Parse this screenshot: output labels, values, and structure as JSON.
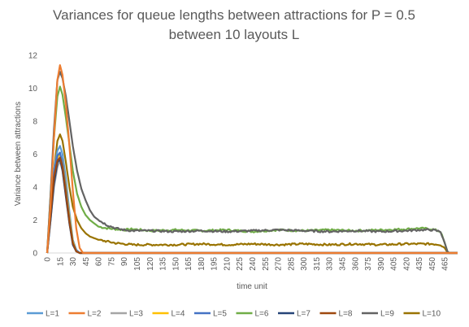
{
  "chart_data": {
    "type": "line",
    "title_line1": "Variances for queue lengths between attractions for P = 0.5",
    "title_line2": "between 10 layouts L",
    "xlabel": "time unit",
    "ylabel": "Variance between attractions",
    "xlim": [
      0,
      480
    ],
    "ylim": [
      0,
      12
    ],
    "y_ticks": [
      "0",
      "2",
      "4",
      "6",
      "8",
      "10",
      "12"
    ],
    "x_ticks": [
      "0",
      "15",
      "30",
      "45",
      "60",
      "75",
      "90",
      "105",
      "120",
      "135",
      "150",
      "165",
      "180",
      "195",
      "210",
      "225",
      "240",
      "255",
      "270",
      "285",
      "300",
      "315",
      "330",
      "345",
      "360",
      "375",
      "390",
      "405",
      "420",
      "435",
      "450",
      "465"
    ],
    "grid": false,
    "legend_position": "bottom",
    "series": [
      {
        "name": "L=1",
        "color": "#5B9BD5",
        "x": [
          0,
          4,
          8,
          12,
          15,
          18,
          22,
          26,
          30,
          34,
          38,
          45,
          60,
          480
        ],
        "y": [
          0,
          2.5,
          5.0,
          6.2,
          6.5,
          6.0,
          4.5,
          2.5,
          0.8,
          0.2,
          0,
          0,
          0,
          0
        ]
      },
      {
        "name": "L=2",
        "color": "#ED7D31",
        "x": [
          0,
          4,
          8,
          12,
          15,
          18,
          22,
          26,
          30,
          34,
          38,
          42,
          45,
          60,
          480
        ],
        "y": [
          0,
          3.0,
          7.0,
          10.5,
          11.4,
          10.8,
          9.0,
          6.5,
          3.8,
          1.5,
          0.3,
          0,
          0,
          0,
          0
        ]
      },
      {
        "name": "L=3",
        "color": "#A5A5A5",
        "x": [
          0,
          4,
          8,
          12,
          15,
          18,
          22,
          26,
          30,
          34,
          38,
          45,
          480
        ],
        "y": [
          0,
          2.0,
          4.0,
          5.2,
          5.6,
          5.0,
          3.5,
          1.8,
          0.6,
          0.1,
          0,
          0,
          0
        ]
      },
      {
        "name": "L=4",
        "color": "#FFC000",
        "x": [
          0,
          4,
          8,
          12,
          15,
          18,
          22,
          26,
          30,
          34,
          38,
          45,
          480
        ],
        "y": [
          0,
          2.2,
          4.5,
          5.8,
          6.0,
          5.5,
          4.0,
          2.2,
          0.7,
          0.1,
          0,
          0,
          0
        ]
      },
      {
        "name": "L=5",
        "color": "#4472C4",
        "x": [
          0,
          4,
          8,
          12,
          15,
          18,
          22,
          26,
          30,
          34,
          38,
          45,
          480
        ],
        "y": [
          0,
          2.4,
          4.8,
          5.9,
          6.1,
          5.4,
          3.8,
          2.0,
          0.6,
          0.1,
          0,
          0,
          0
        ]
      },
      {
        "name": "L=6",
        "color": "#70AD47",
        "x": [
          0,
          4,
          8,
          12,
          15,
          18,
          22,
          26,
          30,
          35,
          40,
          45,
          50,
          55,
          60,
          70,
          80,
          90,
          100,
          120,
          150,
          180,
          210,
          240,
          270,
          300,
          330,
          360,
          390,
          420,
          435,
          450,
          460,
          465,
          468,
          470,
          480
        ],
        "y": [
          0,
          3.5,
          7.0,
          9.5,
          10.1,
          9.6,
          8.2,
          6.6,
          5.0,
          3.6,
          2.8,
          2.3,
          2.0,
          1.8,
          1.6,
          1.5,
          1.45,
          1.4,
          1.45,
          1.35,
          1.4,
          1.35,
          1.4,
          1.3,
          1.4,
          1.35,
          1.4,
          1.35,
          1.4,
          1.45,
          1.5,
          1.45,
          1.3,
          0.6,
          0.1,
          0,
          0
        ]
      },
      {
        "name": "L=7",
        "color": "#264478",
        "x": [
          0,
          4,
          8,
          12,
          15,
          18,
          22,
          26,
          30,
          34,
          38,
          45,
          480
        ],
        "y": [
          0,
          2.0,
          4.2,
          5.5,
          5.7,
          5.0,
          3.4,
          1.8,
          0.5,
          0.1,
          0,
          0,
          0
        ]
      },
      {
        "name": "L=8",
        "color": "#9E480E",
        "x": [
          0,
          4,
          8,
          12,
          15,
          18,
          22,
          26,
          30,
          34,
          38,
          45,
          480
        ],
        "y": [
          0,
          2.3,
          4.6,
          5.6,
          5.8,
          5.2,
          3.6,
          1.9,
          0.6,
          0.1,
          0,
          0,
          0
        ]
      },
      {
        "name": "L=9",
        "color": "#636363",
        "x": [
          0,
          4,
          8,
          12,
          15,
          18,
          22,
          26,
          30,
          35,
          40,
          45,
          50,
          55,
          60,
          70,
          80,
          90,
          100,
          120,
          150,
          180,
          210,
          240,
          270,
          300,
          330,
          360,
          390,
          420,
          435,
          450,
          460,
          465,
          468,
          470,
          480
        ],
        "y": [
          0,
          3.5,
          7.5,
          10.5,
          11.0,
          10.6,
          9.5,
          8.0,
          6.5,
          5.0,
          3.9,
          3.2,
          2.6,
          2.2,
          2.0,
          1.7,
          1.5,
          1.4,
          1.35,
          1.35,
          1.3,
          1.35,
          1.3,
          1.35,
          1.4,
          1.35,
          1.3,
          1.35,
          1.3,
          1.35,
          1.4,
          1.4,
          1.3,
          0.6,
          0.1,
          0,
          0
        ]
      },
      {
        "name": "L=10",
        "color": "#997300",
        "x": [
          0,
          4,
          8,
          12,
          15,
          18,
          22,
          26,
          30,
          35,
          40,
          45,
          50,
          55,
          60,
          70,
          80,
          90,
          100,
          120,
          150,
          180,
          210,
          240,
          270,
          300,
          330,
          360,
          390,
          420,
          435,
          450,
          460,
          465,
          468,
          470,
          480
        ],
        "y": [
          0,
          2.5,
          5.0,
          6.8,
          7.2,
          6.8,
          5.5,
          4.0,
          2.8,
          2.0,
          1.5,
          1.2,
          1.0,
          0.9,
          0.8,
          0.7,
          0.6,
          0.55,
          0.5,
          0.5,
          0.5,
          0.55,
          0.5,
          0.55,
          0.5,
          0.55,
          0.5,
          0.55,
          0.5,
          0.55,
          0.55,
          0.55,
          0.5,
          0.3,
          0.05,
          0,
          0
        ]
      }
    ]
  }
}
